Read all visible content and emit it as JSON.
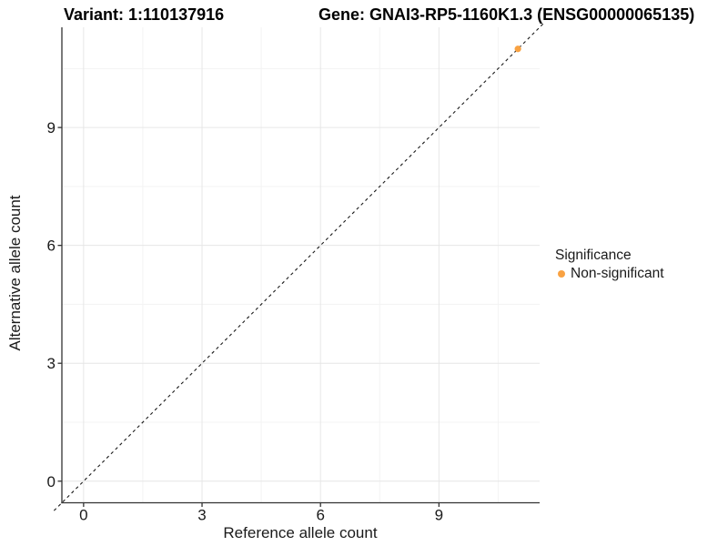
{
  "chart_data": {
    "type": "scatter",
    "title_left": "Variant: 1:110137916",
    "title_right": "Gene: GNAI3-RP5-1160K1.3 (ENSG00000065135)",
    "xlabel": "Reference allele count",
    "ylabel": "Alternative allele count",
    "xlim": [
      -0.55,
      11.55
    ],
    "ylim": [
      -0.55,
      11.55
    ],
    "x_ticks": [
      0,
      3,
      6,
      9
    ],
    "y_ticks": [
      0,
      3,
      6,
      9
    ],
    "x_minor_ticks": [
      1.5,
      4.5,
      7.5,
      10.5
    ],
    "y_minor_ticks": [
      1.5,
      4.5,
      7.5,
      10.5
    ],
    "grid": "major+minor",
    "identity_line": {
      "style": "dashed",
      "color": "#1a1a1a",
      "from": -0.75,
      "to": 11.65
    },
    "points": [
      {
        "x": 11,
        "y": 11,
        "significance": "Non-significant"
      }
    ],
    "legend_position": "right",
    "legend": {
      "title": "Significance",
      "items": [
        {
          "label": "Non-significant",
          "color": "#F9A242"
        }
      ]
    },
    "colors": {
      "axis_line": "#333333",
      "major_grid": "#e6e6e6",
      "minor_grid": "#f3f3f3"
    }
  }
}
